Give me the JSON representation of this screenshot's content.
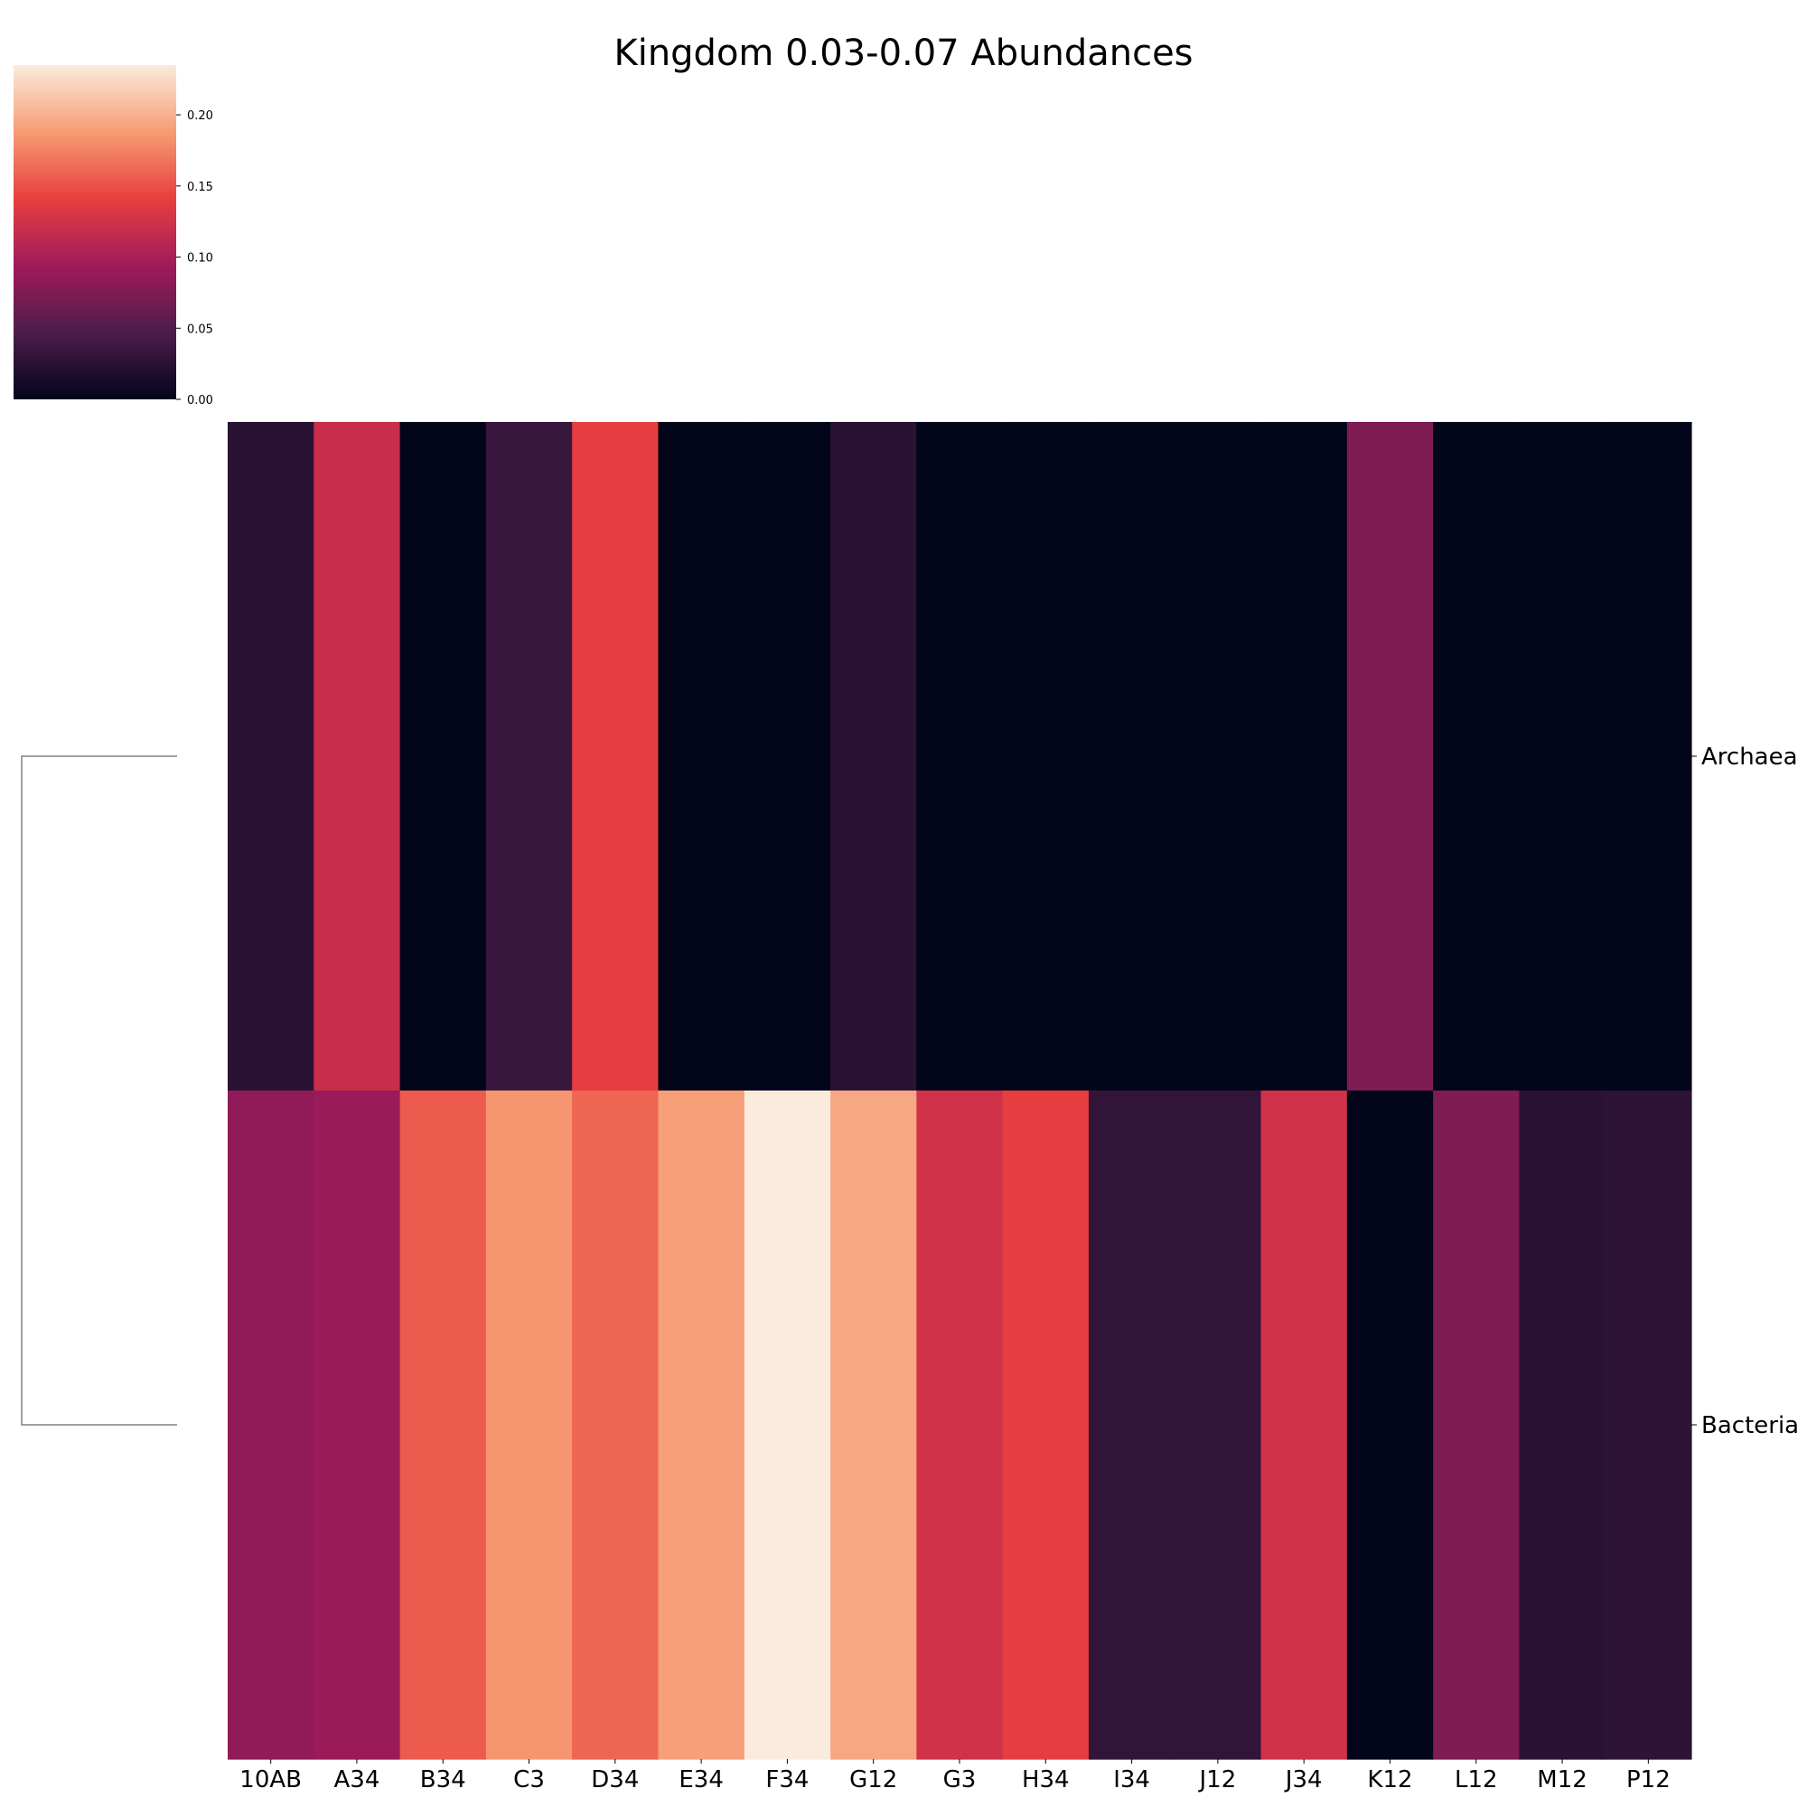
{
  "chart_data": {
    "type": "heatmap",
    "title": "Kingdom 0.03-0.07 Abundances",
    "columns": [
      "10AB",
      "A34",
      "B34",
      "C3",
      "D34",
      "E34",
      "F34",
      "G12",
      "G3",
      "H34",
      "I34",
      "J12",
      "J34",
      "K12",
      "L12",
      "M12",
      "P12"
    ],
    "rows": [
      "Archaea",
      "Bacteria"
    ],
    "values": [
      [
        0.025,
        0.12,
        0.0,
        0.035,
        0.14,
        0.0,
        0.0,
        0.025,
        0.0,
        0.0,
        0.0,
        0.0,
        0.0,
        0.075,
        0.0,
        0.0,
        0.0
      ],
      [
        0.085,
        0.09,
        0.155,
        0.185,
        0.16,
        0.19,
        0.235,
        0.195,
        0.125,
        0.14,
        0.03,
        0.03,
        0.125,
        0.0,
        0.075,
        0.025,
        0.028
      ]
    ],
    "colorbar": {
      "range": [
        0.0,
        0.235
      ],
      "ticks": [
        0.0,
        0.05,
        0.1,
        0.15,
        0.2
      ],
      "tick_labels": [
        "0.00",
        "0.05",
        "0.10",
        "0.15",
        "0.20"
      ],
      "colormap": "rocket",
      "colormap_stops": [
        "#03051a",
        "#4c1d4b",
        "#a11a5b",
        "#e83f3f",
        "#f69c73",
        "#faebdd"
      ]
    },
    "dendrogram": {
      "side": "left",
      "color": "#808080"
    },
    "grid": false,
    "legend": "colorbar top-left"
  }
}
